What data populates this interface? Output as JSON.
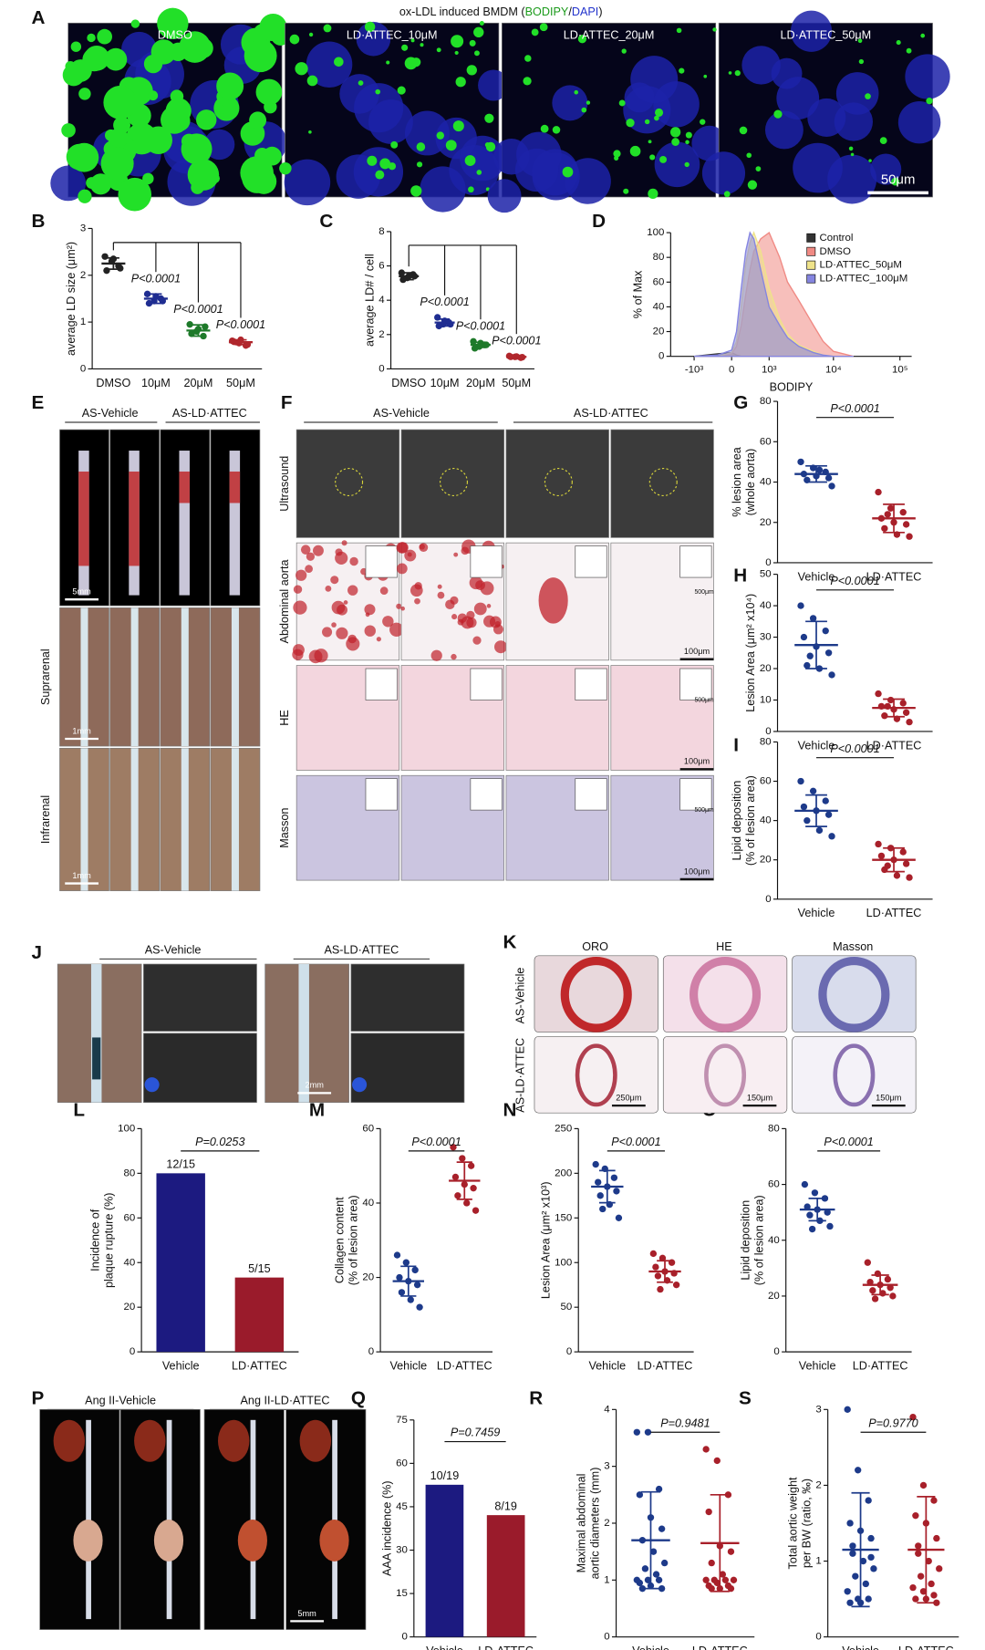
{
  "panels": {
    "A": {
      "label": "A",
      "title": [
        "ox-LDL induced BMDM (",
        "BODIPY",
        "/",
        "DAPI",
        ")"
      ],
      "images": [
        "DMSO",
        "LD·ATTEC_10μM",
        "LD·ATTEC_20μM",
        "LD·ATTEC_50μM"
      ],
      "scale_bar": "50μm"
    },
    "B": {
      "label": "B",
      "chart": {
        "type": "dot",
        "ylabel": [
          "average LD size (μm²)"
        ],
        "categories": [
          "DMSO",
          "10μM",
          "20μM",
          "50μM"
        ],
        "colors": [
          "#222222",
          "#1f2d91",
          "#1e7a2a",
          "#b0262c"
        ],
        "ylim": [
          0,
          3
        ],
        "yticks": [
          0,
          1,
          2,
          3
        ],
        "groups": [
          {
            "points": [
              2.4,
              2.3,
              2.2,
              2.1,
              2.35,
              2.15
            ],
            "mean": 2.25,
            "sd": 0.12
          },
          {
            "points": [
              1.6,
              1.45,
              1.5,
              1.4,
              1.55,
              1.45
            ],
            "mean": 1.5,
            "sd": 0.1
          },
          {
            "points": [
              0.95,
              0.8,
              0.7,
              0.75,
              0.85,
              0.9
            ],
            "mean": 0.82,
            "sd": 0.12
          },
          {
            "points": [
              0.6,
              0.55,
              0.5,
              0.58,
              0.62,
              0.52
            ],
            "mean": 0.57,
            "sd": 0.05
          }
        ],
        "comparisons": [
          "P<0.0001",
          "P<0.0001",
          "P<0.0001"
        ]
      }
    },
    "C": {
      "label": "C",
      "chart": {
        "type": "dot",
        "ylabel": [
          "average LD# / cell"
        ],
        "categories": [
          "DMSO",
          "10μM",
          "20μM",
          "50μM"
        ],
        "colors": [
          "#222222",
          "#1f2d91",
          "#1e7a2a",
          "#b0262c"
        ],
        "ylim": [
          0,
          8
        ],
        "yticks": [
          0,
          2,
          4,
          6,
          8
        ],
        "groups": [
          {
            "points": [
              5.6,
              5.3,
              5.5,
              5.2,
              5.4,
              5.4
            ],
            "mean": 5.4,
            "sd": 0.2
          },
          {
            "points": [
              3.0,
              2.6,
              2.7,
              2.5,
              2.8,
              2.6
            ],
            "mean": 2.7,
            "sd": 0.2
          },
          {
            "points": [
              1.6,
              1.3,
              1.4,
              1.2,
              1.5,
              1.4
            ],
            "mean": 1.4,
            "sd": 0.15
          },
          {
            "points": [
              0.75,
              0.7,
              0.65,
              0.7,
              0.72,
              0.68
            ],
            "mean": 0.7,
            "sd": 0.05
          }
        ],
        "comparisons": [
          "P<0.0001",
          "P<0.0001",
          "P<0.0001"
        ]
      }
    },
    "D": {
      "label": "D",
      "chart": {
        "type": "area",
        "ylabel": [
          "% of Max"
        ],
        "xlabel": "BODIPY",
        "xscale": "asinh",
        "legend": "upper right",
        "x": [
          -1000,
          -300,
          0,
          100,
          200,
          300,
          400,
          500,
          700,
          1000,
          1500,
          2000,
          3000,
          5000,
          7000,
          10000,
          20000
        ],
        "xlim": [
          -2400,
          150000
        ],
        "xticks": [
          {
            "value": -1000,
            "label": "-10³"
          },
          0,
          {
            "value": 1000,
            "label": "10³"
          },
          {
            "value": 10000,
            "label": "10⁴"
          },
          {
            "value": 100000,
            "label": "10⁵"
          }
        ],
        "ylim": [
          0,
          100
        ],
        "yticks": [
          0,
          20,
          40,
          60,
          80,
          100
        ],
        "series": [
          {
            "name": "Control",
            "color": "#333333",
            "values": [
              0,
              2,
              3,
              1,
              0,
              0,
              0,
              0,
              0,
              0,
              0,
              0,
              0,
              0,
              0,
              0,
              0
            ]
          },
          {
            "name": "DMSO",
            "color": "#f08a84",
            "values": [
              0,
              0,
              2,
              8,
              25,
              50,
              70,
              85,
              95,
              100,
              80,
              60,
              45,
              25,
              12,
              4,
              0
            ]
          },
          {
            "name": "LD·ATTEC_50μM",
            "color": "#efe38a",
            "values": [
              0,
              0,
              3,
              12,
              40,
              75,
              92,
              100,
              85,
              55,
              30,
              18,
              9,
              4,
              1,
              0,
              0
            ]
          },
          {
            "name": "LD·ATTEC_100μM",
            "color": "#8585e0",
            "values": [
              0,
              1,
              5,
              20,
              55,
              85,
              100,
              95,
              70,
              40,
              25,
              15,
              8,
              3,
              1,
              0,
              0
            ]
          }
        ]
      }
    },
    "E": {
      "label": "E",
      "headers": [
        "AS-Vehicle",
        "AS-LD·ATTEC"
      ],
      "rows": [
        "Suprarenal",
        "Infrarenal"
      ],
      "scale_bars": [
        "5mm",
        "1mm",
        "1mm"
      ]
    },
    "F": {
      "label": "F",
      "headers": [
        "AS-Vehicle",
        "AS-LD·ATTEC"
      ],
      "rows": [
        "Ultrasound",
        "Abdominal aorta",
        "HE",
        "Masson"
      ],
      "scale_bars": [
        "500μm",
        "100μm",
        "500μm",
        "100μm",
        "500μm",
        "100μm"
      ]
    },
    "G": {
      "label": "G",
      "chart": {
        "type": "dot",
        "ylabel": [
          "% lesion area",
          "(whole aorta)"
        ],
        "categories": [
          "Vehicle",
          "LD·ATTEC"
        ],
        "colors": [
          "#1d3a8a",
          "#a8202a"
        ],
        "ylim": [
          0,
          80
        ],
        "yticks": [
          0,
          20,
          40,
          60,
          80
        ],
        "groups": [
          {
            "points": [
              50,
              47,
              45,
              44,
              43,
              42,
              41,
              46,
              38
            ],
            "mean": 44,
            "sd": 4
          },
          {
            "points": [
              35,
              27,
              25,
              22,
              20,
              19,
              17,
              14,
              13,
              24
            ],
            "mean": 22,
            "sd": 7
          }
        ],
        "comparisons": [
          "P<0.0001"
        ]
      }
    },
    "H": {
      "label": "H",
      "chart": {
        "type": "dot",
        "ylabel": [
          "Lesion Area (μm² x10⁴)"
        ],
        "categories": [
          "Vehicle",
          "LD·ATTEC"
        ],
        "colors": [
          "#1d3a8a",
          "#a8202a"
        ],
        "ylim": [
          0,
          50
        ],
        "yticks": [
          0,
          10,
          20,
          30,
          40,
          50
        ],
        "groups": [
          {
            "points": [
              40,
              36,
              32,
              30,
              27,
              25,
              21,
              20,
              18,
              24
            ],
            "mean": 27.5,
            "sd": 7.5
          },
          {
            "points": [
              12,
              10,
              9,
              8,
              7,
              6,
              5,
              4,
              3,
              8
            ],
            "mean": 7.5,
            "sd": 2.8
          }
        ],
        "comparisons": [
          "P<0.0001"
        ]
      }
    },
    "I": {
      "label": "I",
      "chart": {
        "type": "dot",
        "ylabel": [
          "Lipid deposition",
          "(% of lesion area)"
        ],
        "categories": [
          "Vehicle",
          "LD·ATTEC"
        ],
        "colors": [
          "#1d3a8a",
          "#a8202a"
        ],
        "ylim": [
          0,
          80
        ],
        "yticks": [
          0,
          20,
          40,
          60,
          80
        ],
        "groups": [
          {
            "points": [
              60,
              55,
              50,
              47,
              45,
              43,
              40,
              35,
              32
            ],
            "mean": 45,
            "sd": 8
          },
          {
            "points": [
              28,
              26,
              24,
              22,
              20,
              18,
              15,
              12,
              11,
              17
            ],
            "mean": 20,
            "sd": 6
          }
        ],
        "comparisons": [
          "P<0.0001"
        ]
      }
    },
    "J": {
      "label": "J",
      "headers": [
        "AS-Vehicle",
        "AS-LD·ATTEC"
      ],
      "scale_bar": "2mm"
    },
    "K": {
      "label": "K",
      "columns": [
        "ORO",
        "HE",
        "Masson"
      ],
      "rows": [
        "AS-Vehicle",
        "AS-LD·ATTEC"
      ],
      "scale_bars": [
        "250μm",
        "150μm",
        "150μm"
      ]
    },
    "L": {
      "label": "L",
      "chart": {
        "type": "bar",
        "ylabel": [
          "Incidence of",
          "plaque rupture (%)"
        ],
        "categories": [
          "Vehicle",
          "LD·ATTEC"
        ],
        "colors": [
          "#1c1a80",
          "#9a1b2b"
        ],
        "ylim": [
          0,
          100
        ],
        "yticks": [
          0,
          20,
          40,
          60,
          80,
          100
        ],
        "values": [
          80,
          33.3
        ],
        "value_labels": [
          "12/15",
          "5/15"
        ],
        "comparisons": [
          "P=0.0253"
        ]
      }
    },
    "M": {
      "label": "M",
      "chart": {
        "type": "dot",
        "ylabel": [
          "Collagen content",
          "(% of lesion area)"
        ],
        "categories": [
          "Vehicle",
          "LD·ATTEC"
        ],
        "colors": [
          "#1d3a8a",
          "#a8202a"
        ],
        "ylim": [
          0,
          60
        ],
        "yticks": [
          0,
          20,
          40,
          60
        ],
        "groups": [
          {
            "points": [
              26,
              24,
              22,
              20,
              19,
              18,
              16,
              14,
              12
            ],
            "mean": 19,
            "sd": 4
          },
          {
            "points": [
              55,
              52,
              50,
              47,
              45,
              44,
              42,
              40,
              38
            ],
            "mean": 46,
            "sd": 5
          }
        ],
        "comparisons": [
          "P<0.0001"
        ]
      }
    },
    "N": {
      "label": "N",
      "chart": {
        "type": "dot",
        "ylabel": [
          "Lesion Area (μm² x10³)"
        ],
        "categories": [
          "Vehicle",
          "LD·ATTEC"
        ],
        "colors": [
          "#1d3a8a",
          "#a8202a"
        ],
        "ylim": [
          0,
          250
        ],
        "yticks": [
          0,
          50,
          100,
          150,
          200,
          250
        ],
        "groups": [
          {
            "points": [
              210,
              205,
              195,
              190,
              185,
              180,
              175,
              165,
              150,
              160
            ],
            "mean": 185,
            "sd": 18
          },
          {
            "points": [
              110,
              105,
              100,
              95,
              90,
              88,
              85,
              80,
              75,
              70
            ],
            "mean": 90,
            "sd": 12
          }
        ],
        "comparisons": [
          "P<0.0001"
        ]
      }
    },
    "O": {
      "label": "O",
      "chart": {
        "type": "dot",
        "ylabel": [
          "Lipid deposition",
          "(% of lesion area)"
        ],
        "categories": [
          "Vehicle",
          "LD·ATTEC"
        ],
        "colors": [
          "#1d3a8a",
          "#a8202a"
        ],
        "ylim": [
          0,
          80
        ],
        "yticks": [
          0,
          20,
          40,
          60,
          80
        ],
        "groups": [
          {
            "points": [
              60,
              57,
              55,
              52,
              51,
              50,
              49,
              47,
              45,
              44
            ],
            "mean": 51,
            "sd": 4
          },
          {
            "points": [
              32,
              28,
              26,
              25,
              24,
              23,
              22,
              21,
              20,
              19
            ],
            "mean": 24,
            "sd": 3.5
          }
        ],
        "comparisons": [
          "P<0.0001"
        ]
      }
    },
    "P": {
      "label": "P",
      "headers": [
        "Ang II-Vehicle",
        "Ang II-LD·ATTEC"
      ],
      "scale_bar": "5mm"
    },
    "Q": {
      "label": "Q",
      "chart": {
        "type": "bar",
        "ylabel": [
          "AAA incidence (%)"
        ],
        "categories": [
          "Vehicle",
          "LD·ATTEC"
        ],
        "colors": [
          "#1c1a80",
          "#9a1b2b"
        ],
        "ylim": [
          0,
          75
        ],
        "yticks": [
          0,
          15,
          30,
          45,
          60,
          75
        ],
        "values": [
          52.6,
          42.1
        ],
        "value_labels": [
          "10/19",
          "8/19"
        ],
        "comparisons": [
          "P=0.7459"
        ]
      }
    },
    "R": {
      "label": "R",
      "chart": {
        "type": "dot",
        "ylabel": [
          "Maximal abdominal",
          "aortic diameters (mm)"
        ],
        "categories": [
          "Vehicle",
          "LD·ATTEC"
        ],
        "colors": [
          "#1d3a8a",
          "#a8202a"
        ],
        "ylim": [
          0,
          4
        ],
        "yticks": [
          0,
          1,
          2,
          3,
          4
        ],
        "groups": [
          {
            "points": [
              3.6,
              3.6,
              2.6,
              2.5,
              2.1,
              1.9,
              1.7,
              1.5,
              1.3,
              1.2,
              1.1,
              1.0,
              1.0,
              1.0,
              0.95,
              0.9,
              0.85,
              0.85
            ],
            "mean": 1.7,
            "sd": 0.85
          },
          {
            "points": [
              3.3,
              3.1,
              2.5,
              2.2,
              1.6,
              1.5,
              1.3,
              1.1,
              1.0,
              1.0,
              1.0,
              1.0,
              0.95,
              0.9,
              0.9,
              0.85,
              0.85,
              0.85
            ],
            "mean": 1.65,
            "sd": 0.85
          }
        ],
        "comparisons": [
          "P=0.9481"
        ]
      }
    },
    "S": {
      "label": "S",
      "chart": {
        "type": "dot",
        "ylabel": [
          "Total aortic weight",
          "per BW (ratio, ‰)"
        ],
        "categories": [
          "Vehicle",
          "LD·ATTEC"
        ],
        "colors": [
          "#1d3a8a",
          "#a8202a"
        ],
        "ylim": [
          0,
          3
        ],
        "yticks": [
          0,
          1,
          2,
          3
        ],
        "groups": [
          {
            "points": [
              3.0,
              2.2,
              1.8,
              1.5,
              1.4,
              1.3,
              1.2,
              1.0,
              0.9,
              0.8,
              0.7,
              0.6,
              0.5,
              0.5,
              0.45,
              0.45,
              1.05,
              1.1
            ],
            "mean": 1.15,
            "sd": 0.75
          },
          {
            "points": [
              2.9,
              2.0,
              1.8,
              1.6,
              1.5,
              1.3,
              1.1,
              1.0,
              0.9,
              0.8,
              0.7,
              0.65,
              0.6,
              0.55,
              0.5,
              0.5,
              0.45,
              1.2
            ],
            "mean": 1.15,
            "sd": 0.7
          }
        ],
        "comparisons": [
          "P=0.9770"
        ]
      }
    }
  }
}
